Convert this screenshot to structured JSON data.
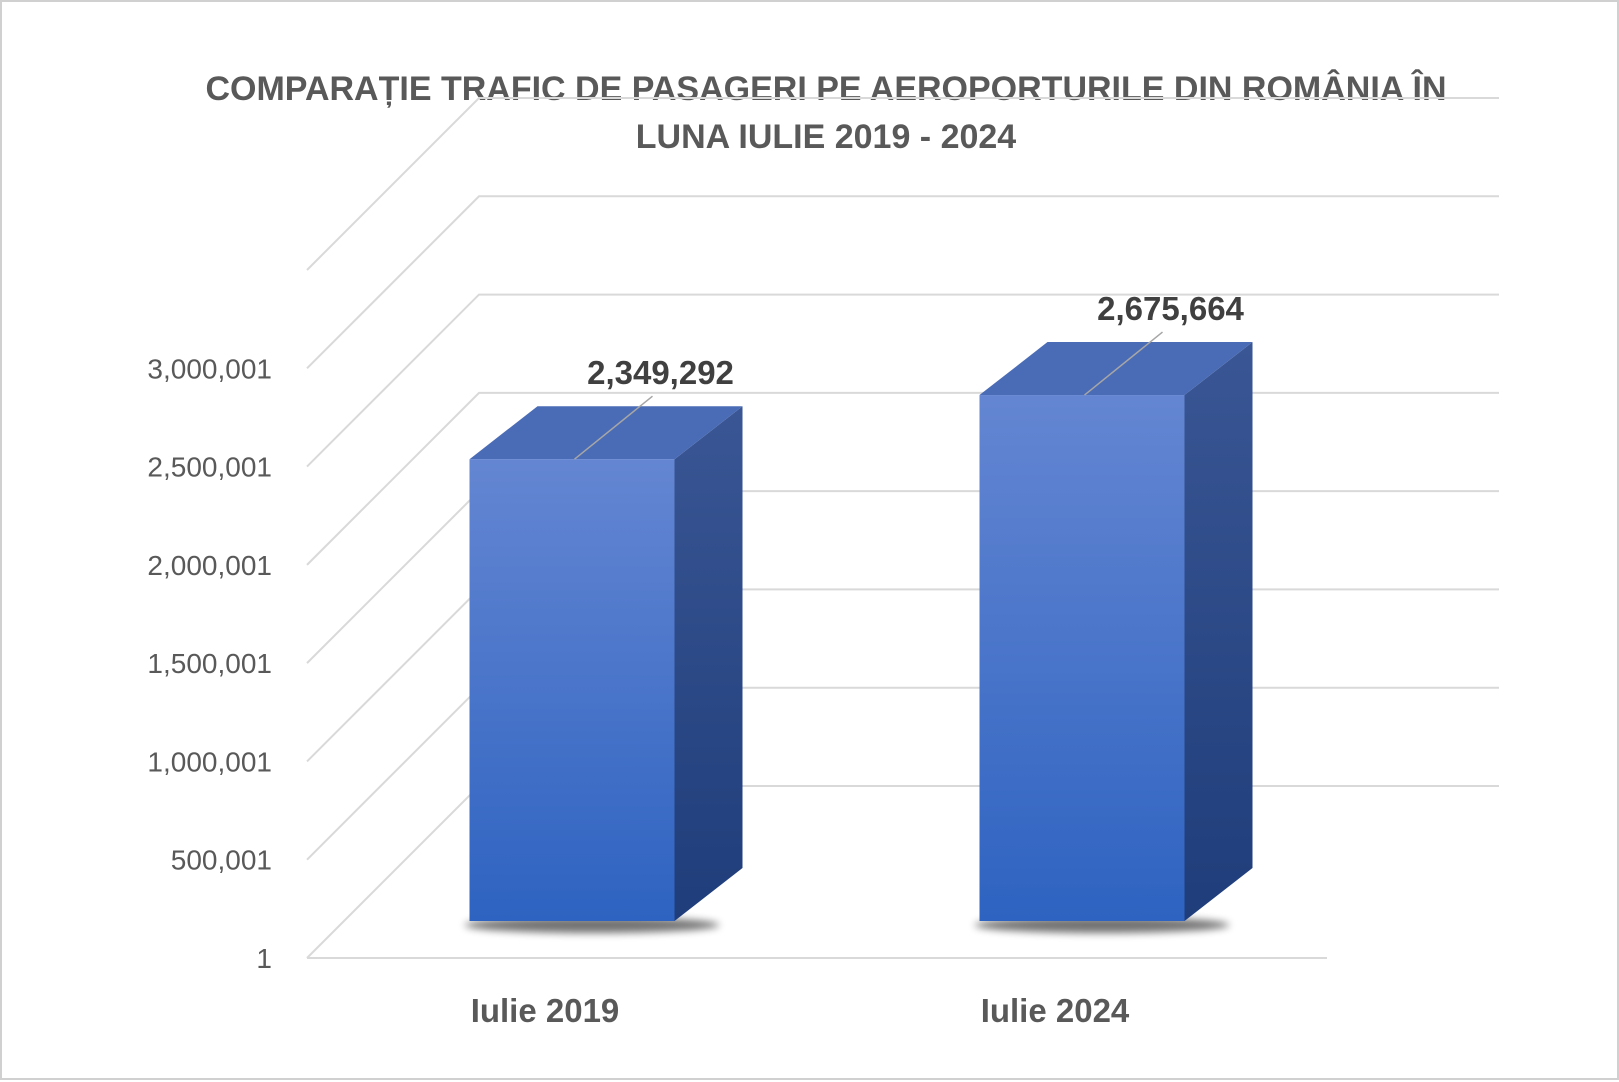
{
  "chart_data": {
    "type": "bar",
    "title_lines": [
      "COMPARAȚIE TRAFIC DE PASAGERI PE AEROPORTURILE DIN ROMÂNIA ÎN",
      "LUNA IULIE 2019 - 2024"
    ],
    "categories": [
      "Iulie 2019",
      "Iulie 2024"
    ],
    "values": [
      2349292,
      2675664
    ],
    "data_labels": [
      "2,349,292",
      "2,675,664"
    ],
    "y_ticks": [
      "1",
      "500,001",
      "1,000,001",
      "1,500,001",
      "2,000,001",
      "2,500,001",
      "3,000,001"
    ],
    "y_tick_values": [
      1,
      500001,
      1000001,
      1500001,
      2000001,
      2500001,
      3000001
    ],
    "ylim": [
      1,
      3500001
    ],
    "xlabel": "",
    "ylabel": "",
    "grid": true,
    "style": "3d-column",
    "colors": {
      "bar_front_top": "#6486d2",
      "bar_front_bottom": "#2e63c1",
      "bar_side": "#2a4a8e",
      "bar_top": "#4a6bb5",
      "grid": "#d9d9d9",
      "text": "#595959",
      "label": "#404040"
    }
  }
}
